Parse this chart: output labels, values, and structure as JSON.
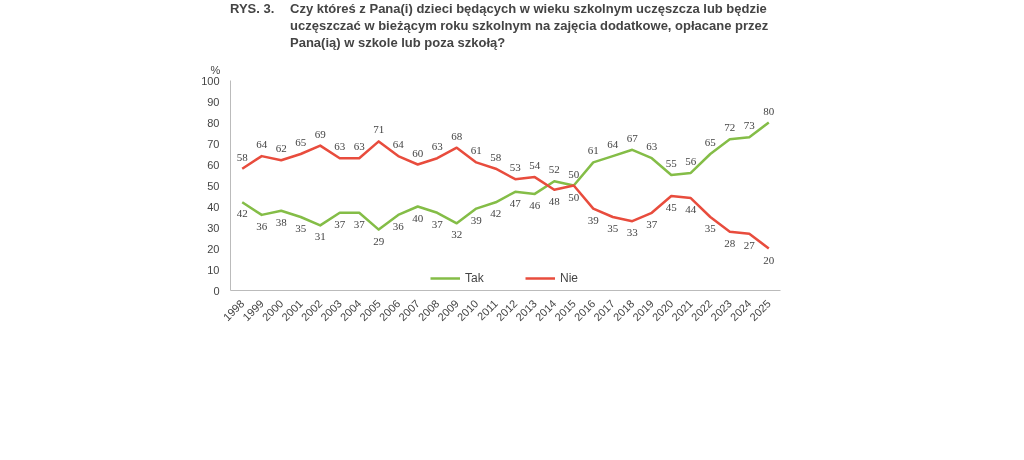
{
  "chart_data": {
    "type": "line",
    "title": "RYS. 3.",
    "subtitle": "Czy któreś z Pana(i) dzieci będących w wieku szkolnym uczęszcza lub będzie uczęszczać w bieżącym roku szkolnym na zajęcia dodatkowe, opłacane przez Pana(ią) w szkole lub poza szkołą?",
    "ylabel": "%",
    "categories": [
      "1998",
      "1999",
      "2000",
      "2001",
      "2002",
      "2003",
      "2004",
      "2005",
      "2006",
      "2007",
      "2008",
      "2009",
      "2010",
      "2011",
      "2012",
      "2013",
      "2014",
      "2015",
      "2016",
      "2017",
      "2018",
      "2019",
      "2020",
      "2021",
      "2022",
      "2023",
      "2024",
      "2025"
    ],
    "series": [
      {
        "name": "Tak",
        "color": "#84bd47",
        "values": [
          42,
          36,
          38,
          35,
          31,
          37,
          37,
          29,
          36,
          40,
          37,
          32,
          39,
          42,
          47,
          46,
          52,
          50,
          61,
          64,
          67,
          63,
          55,
          56,
          65,
          72,
          73,
          80
        ]
      },
      {
        "name": "Nie",
        "color": "#e84c3d",
        "values": [
          58,
          64,
          62,
          65,
          69,
          63,
          63,
          71,
          64,
          60,
          63,
          68,
          61,
          58,
          53,
          54,
          48,
          50,
          39,
          35,
          33,
          37,
          45,
          44,
          35,
          28,
          27,
          20
        ]
      }
    ],
    "ylim": [
      0,
      100
    ],
    "yticks": [
      0,
      10,
      20,
      30,
      40,
      50,
      60,
      70,
      80,
      90,
      100
    ],
    "grid": false,
    "legend": "bottom",
    "data_labels": true,
    "marker": "none",
    "line_style": "solid"
  }
}
